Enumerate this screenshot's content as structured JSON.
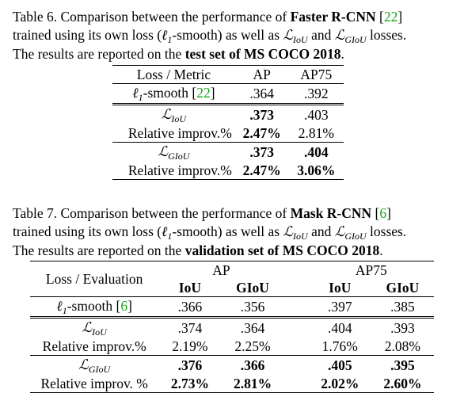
{
  "table6": {
    "caption": {
      "line1_a": "Table 6. Comparison between the performance of ",
      "line1_b": "Faster R-CNN",
      "line1_c": " [",
      "line1_cite": "22",
      "line1_d": "]",
      "line2_a": "trained using its own loss (",
      "line2_l1": "ℓ",
      "line2_l1sub": "1",
      "line2_b": "-smooth) as well as ",
      "line2_L": "ℒ",
      "line2_Lsub": "IoU",
      "line2_c": " and ",
      "line2_L2": "ℒ",
      "line2_L2sub": "GIoU",
      "line2_d": " losses.",
      "line3_a": "The results are reported on the ",
      "line3_b": "test set of MS COCO 2018",
      "line3_c": "."
    },
    "header": {
      "metric": "Loss / Metric",
      "ap": "AP",
      "ap75": "AP75"
    },
    "rows": [
      {
        "loss_l": "ℓ",
        "loss_sub": "1",
        "loss_rest": "-smooth [",
        "cite": "22",
        "close": "]",
        "ap": ".364",
        "ap75": ".392"
      },
      {
        "loss_L": "ℒ",
        "loss_sub": "IoU",
        "ap": ".373",
        "ap75": ".403"
      },
      {
        "label": "Relative improv.%",
        "ap": "2.47%",
        "ap75": "2.81%"
      },
      {
        "loss_L": "ℒ",
        "loss_sub": "GIoU",
        "ap": ".373",
        "ap75": ".404"
      },
      {
        "label": "Relative improv.%",
        "ap": "2.47%",
        "ap75": "3.06%"
      }
    ]
  },
  "table7": {
    "caption": {
      "line1_a": "Table 7. Comparison between the performance of ",
      "line1_b": "Mask R-CNN",
      "line1_c": " [",
      "line1_cite": "6",
      "line1_d": "]",
      "line2_a": "trained using its own loss (",
      "line2_l1": "ℓ",
      "line2_l1sub": "1",
      "line2_b": "-smooth) as well as ",
      "line2_L": "ℒ",
      "line2_Lsub": "IoU",
      "line2_c": " and ",
      "line2_L2": "ℒ",
      "line2_L2sub": "GIoU",
      "line2_d": " losses.",
      "line3_a": "The results are reported on the ",
      "line3_b": "validation set of MS COCO 2018",
      "line3_c": "."
    },
    "header": {
      "evaluation": "Loss / Evaluation",
      "ap": "AP",
      "ap75": "AP75",
      "iou": "IoU",
      "giou": "GIoU",
      "iou2": "IoU",
      "giou2": "GIoU"
    },
    "rows": [
      {
        "loss_l": "ℓ",
        "loss_sub": "1",
        "loss_rest": "-smooth [",
        "cite": "6",
        "close": "]",
        "ap_iou": ".366",
        "ap_giou": ".356",
        "ap75_iou": ".397",
        "ap75_giou": ".385"
      },
      {
        "loss_L": "ℒ",
        "loss_sub": "IoU",
        "ap_iou": ".374",
        "ap_giou": ".364",
        "ap75_iou": ".404",
        "ap75_giou": ".393"
      },
      {
        "label": "Relative improv.%",
        "ap_iou": "2.19%",
        "ap_giou": "2.25%",
        "ap75_iou": "1.76%",
        "ap75_giou": "2.08%"
      },
      {
        "loss_L": "ℒ",
        "loss_sub": "GIoU",
        "ap_iou": ".376",
        "ap_giou": ".366",
        "ap75_iou": ".405",
        "ap75_giou": ".395"
      },
      {
        "label": "Relative improv. %",
        "ap_iou": "2.73%",
        "ap_giou": "2.81%",
        "ap75_iou": "2.02%",
        "ap75_giou": "2.60%"
      }
    ]
  }
}
